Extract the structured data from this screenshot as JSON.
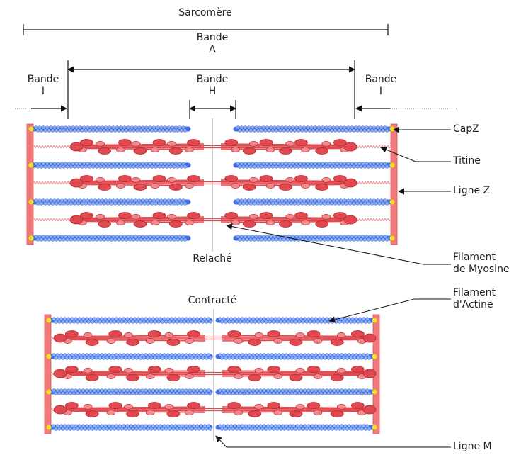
{
  "title": "Sarcomère",
  "labels": {
    "band_a_l1": "Bande",
    "band_a_l2": "A",
    "band_i_l1": "Bande",
    "band_i_l2": "I",
    "band_h_l1": "Bande",
    "band_h_l2": "H",
    "capz": "CapZ",
    "titine": "Titine",
    "ligne_z": "Ligne Z",
    "myosine_l1": "Filament",
    "myosine_l2": "de Myosine",
    "actine_l1": "Filament",
    "actine_l2": "d'Actine",
    "ligne_m": "Ligne M"
  },
  "states": {
    "relaxed": "Relaché",
    "contracted": "Contracté"
  },
  "colors": {
    "actin": "#3f6fe0",
    "actin_light": "#8fb0f5",
    "myosin": "#e0494f",
    "myosin_light": "#f08a8e",
    "z_disc": "#f07a7a",
    "capz": "#f2e21c",
    "titin": "#e87f86",
    "line": "#222222",
    "m_line": "#aaaaaa"
  },
  "icons": [
    "arrow-icon"
  ]
}
